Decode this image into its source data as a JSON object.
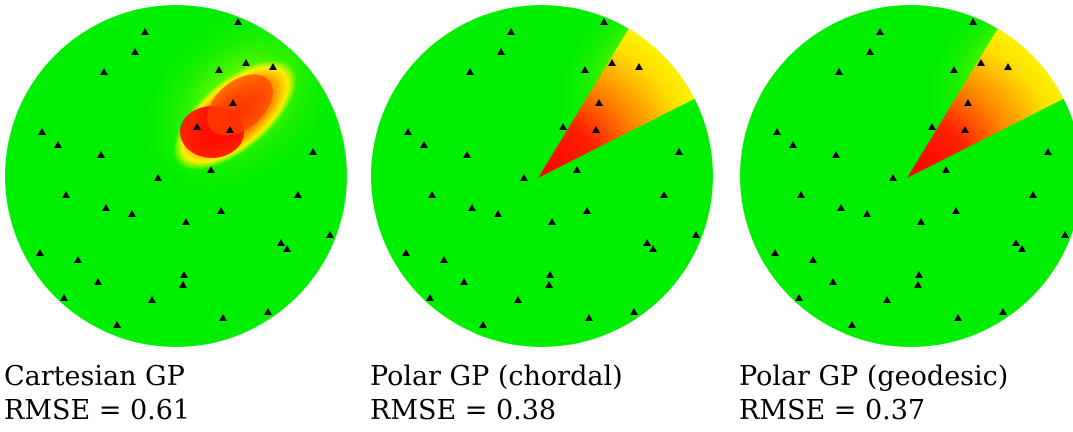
{
  "panels": [
    {
      "method": "Cartesian GP",
      "rmse": "RMSE = 0.61",
      "field": "cartesian"
    },
    {
      "method": "Polar GP (chordal)",
      "rmse": "RMSE = 0.38",
      "field": "polar"
    },
    {
      "method": "Polar GP (geodesic)",
      "rmse": "RMSE = 0.37",
      "field": "polar"
    }
  ],
  "colors": {
    "background_field": "#00ee00",
    "peak": "#ff0000",
    "mid": "#ff9900",
    "edge": "#ffff00",
    "marker": "#000000"
  }
}
